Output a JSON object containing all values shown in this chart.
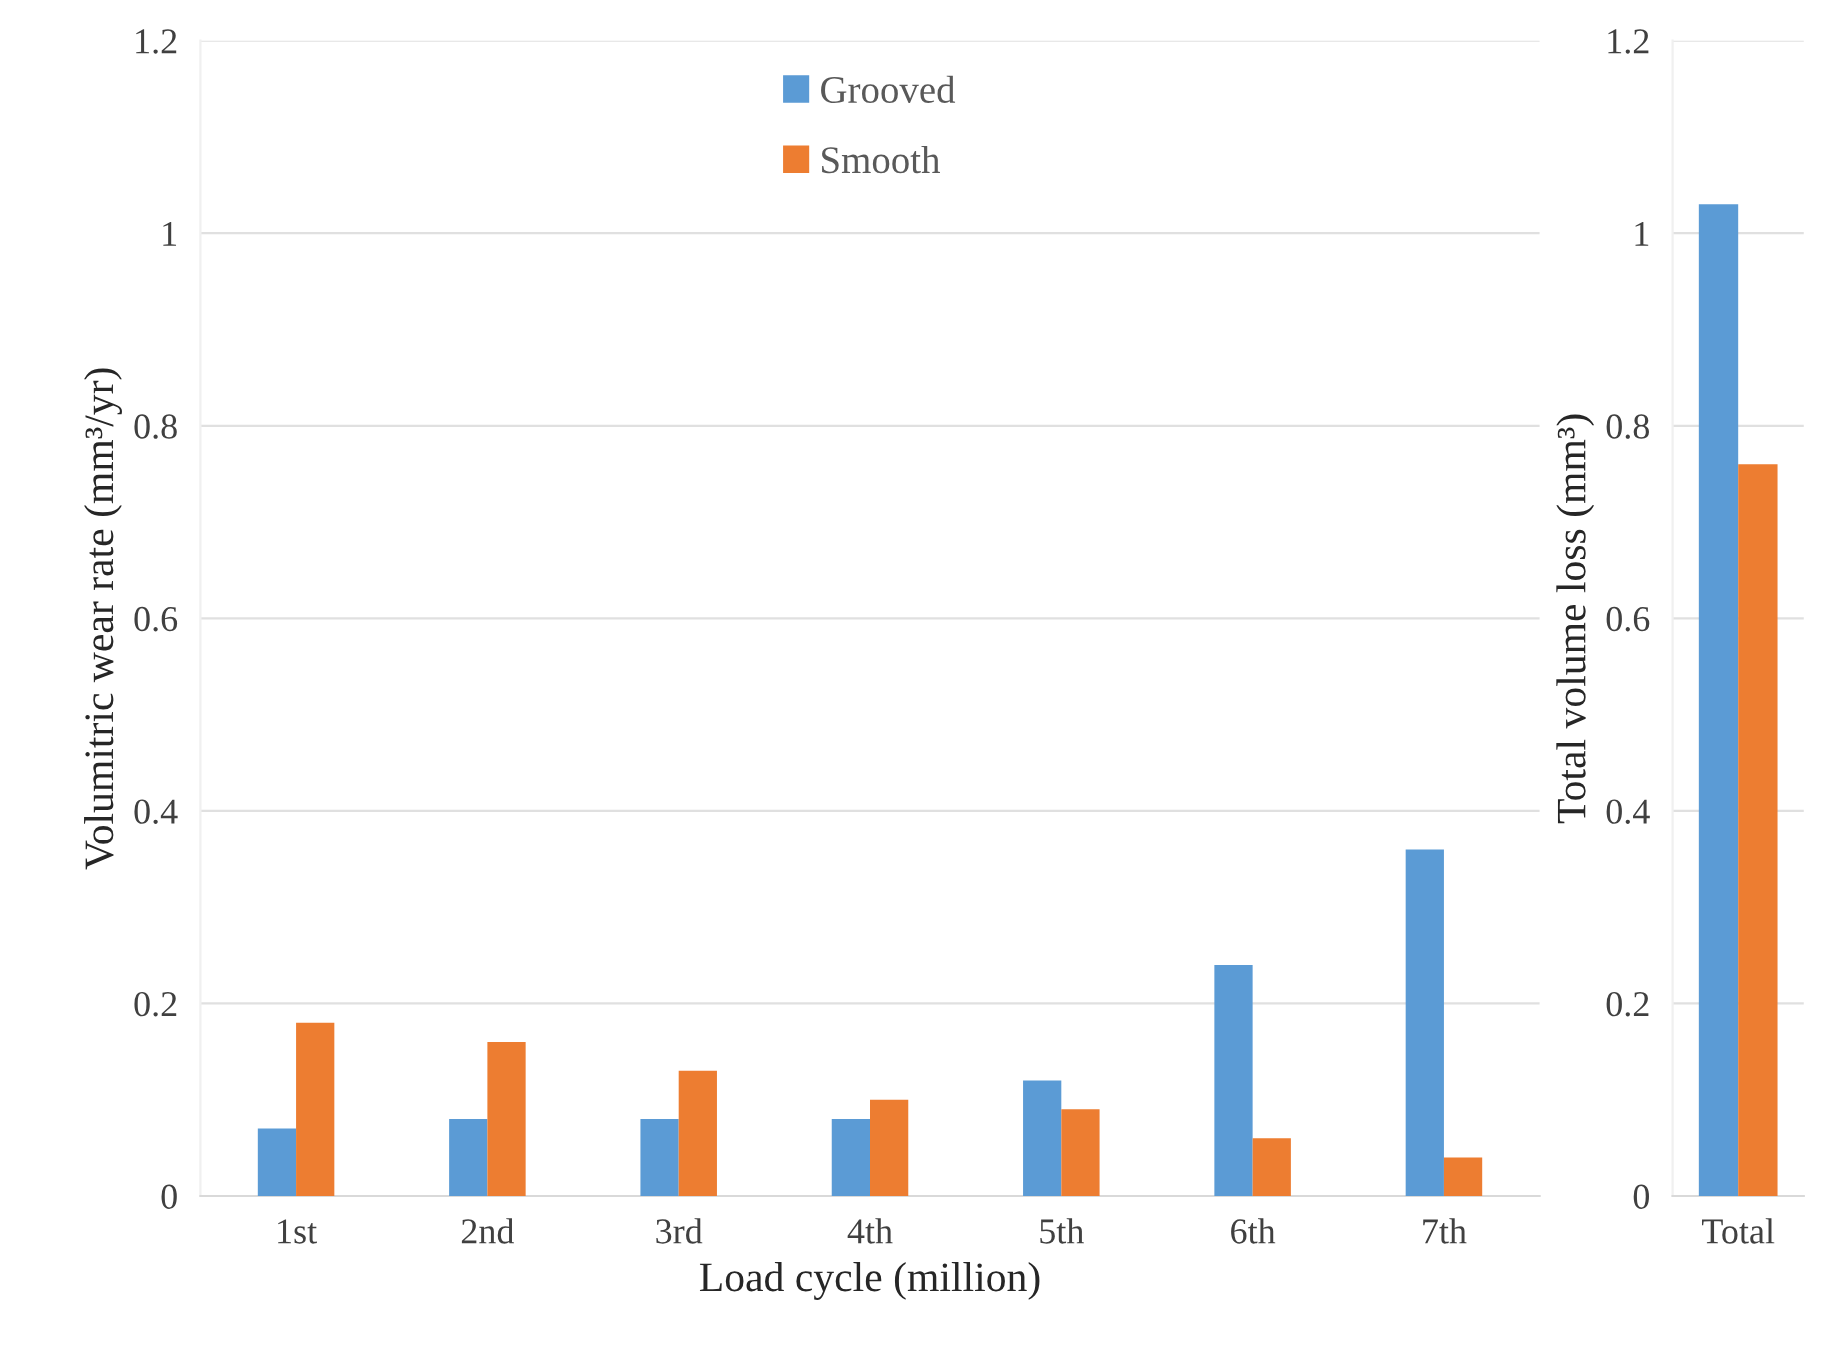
{
  "chart_data": [
    {
      "type": "bar",
      "categories": [
        "1st",
        "2nd",
        "3rd",
        "4th",
        "5th",
        "6th",
        "7th"
      ],
      "xlabel": "Load cycle (million)",
      "ylabel": "Volumitric wear rate (mm³/yr)",
      "ylim": [
        0,
        1.2
      ],
      "yticks": [
        0,
        0.2,
        0.4,
        0.6,
        0.8,
        1,
        1.2
      ],
      "grid": "y",
      "legend": "top",
      "series": [
        {
          "name": "Grooved",
          "color": "#5b9bd5",
          "values": [
            0.07,
            0.08,
            0.08,
            0.08,
            0.12,
            0.24,
            0.36
          ]
        },
        {
          "name": "Smooth",
          "color": "#ed7d31",
          "values": [
            0.18,
            0.16,
            0.13,
            0.1,
            0.09,
            0.06,
            0.04
          ]
        }
      ]
    },
    {
      "type": "bar",
      "categories": [
        "Total"
      ],
      "ylabel": "Total volume loss (mm³)",
      "ylim": [
        0,
        1.2
      ],
      "yticks": [
        0,
        0.2,
        0.4,
        0.6,
        0.8,
        1,
        1.2
      ],
      "grid": "y",
      "series": [
        {
          "color": "#5b9bd5",
          "values": [
            1.03
          ]
        },
        {
          "color": "#ed7d31",
          "values": [
            0.76
          ]
        }
      ]
    }
  ]
}
